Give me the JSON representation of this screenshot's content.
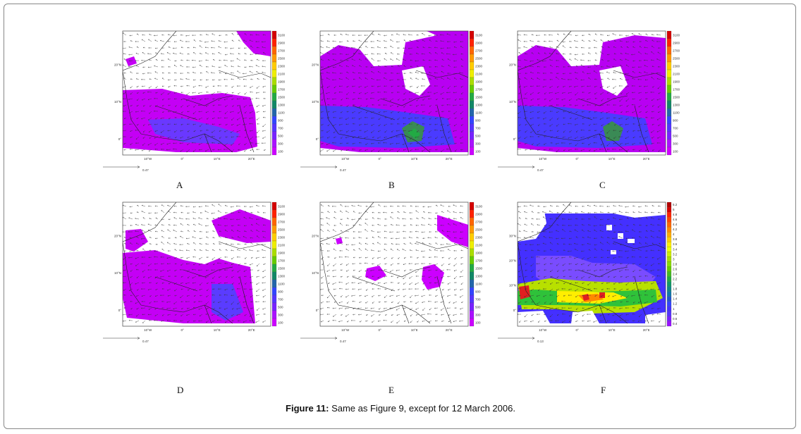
{
  "figure": {
    "caption_label": "Figure 11:",
    "caption_text": " Same as Figure 9, except for 12 March 2006."
  },
  "panels": [
    {
      "id": "A",
      "label": "A",
      "lat_ticks": [
        "20°N",
        "10°N",
        "0°"
      ],
      "lon_ticks": [
        "10°W",
        "0°",
        "10°E",
        "20°E"
      ],
      "colorbar": [
        "3100",
        "2900",
        "2700",
        "2500",
        "2300",
        "2100",
        "1900",
        "1700",
        "1500",
        "1300",
        "1100",
        "900",
        "700",
        "500",
        "300",
        "100"
      ],
      "ref_value": "0.47",
      "coverage": "Purple",
      "colors": {
        "low": "#cc00ff",
        "mid": "#4a3bff",
        "high": "#22aa44"
      }
    },
    {
      "id": "B",
      "label": "B",
      "lat_ticks": [
        "20°N",
        "10°N",
        "0°"
      ],
      "lon_ticks": [
        "10°W",
        "0°",
        "10°E",
        "20°E"
      ],
      "colorbar": [
        "3100",
        "2900",
        "2700",
        "2500",
        "2300",
        "2100",
        "1900",
        "1700",
        "1500",
        "1300",
        "1100",
        "900",
        "700",
        "500",
        "300",
        "100"
      ],
      "ref_value": "0.47"
    },
    {
      "id": "C",
      "label": "C",
      "lat_ticks": [
        "20°N",
        "10°N",
        "0°"
      ],
      "lon_ticks": [
        "10°W",
        "0°",
        "10°E",
        "20°E"
      ],
      "colorbar": [
        "3100",
        "2900",
        "2700",
        "2500",
        "2300",
        "2100",
        "1900",
        "1700",
        "1500",
        "1300",
        "1100",
        "900",
        "700",
        "500",
        "300",
        "100"
      ],
      "ref_value": "0.47"
    },
    {
      "id": "D",
      "label": "D",
      "lat_ticks": [
        "20°N",
        "10°N",
        "0°"
      ],
      "lon_ticks": [
        "10°W",
        "0°",
        "10°E",
        "20°E"
      ],
      "colorbar": [
        "3100",
        "2900",
        "2700",
        "2500",
        "2300",
        "2100",
        "1900",
        "1700",
        "1500",
        "1300",
        "1100",
        "900",
        "700",
        "500",
        "300",
        "100"
      ],
      "ref_value": "0.47"
    },
    {
      "id": "E",
      "label": "E",
      "lat_ticks": [
        "20°N",
        "10°N",
        "0°"
      ],
      "lon_ticks": [
        "10°W",
        "0°",
        "10°E",
        "20°E"
      ],
      "colorbar": [
        "3100",
        "2900",
        "2700",
        "2500",
        "2300",
        "2100",
        "1900",
        "1700",
        "1500",
        "1300",
        "1100",
        "900",
        "700",
        "500",
        "300",
        "100"
      ],
      "ref_value": "0.47"
    },
    {
      "id": "F",
      "label": "F",
      "lat_ticks": [
        "30°N",
        "20°N",
        "10°N",
        "0°"
      ],
      "lon_ticks": [
        "10°W",
        "0°",
        "10°E",
        "20°E"
      ],
      "colorbar": [
        "5.2",
        "5",
        "4.8",
        "4.6",
        "4.4",
        "4.2",
        "4",
        "3.8",
        "3.6",
        "3.4",
        "3.2",
        "3",
        "2.8",
        "2.6",
        "2.4",
        "2.2",
        "2",
        "1.8",
        "1.6",
        "1.4",
        "1.2",
        "1",
        "0.8",
        "0.6",
        "0.4"
      ],
      "ref_value": "0.13"
    }
  ]
}
